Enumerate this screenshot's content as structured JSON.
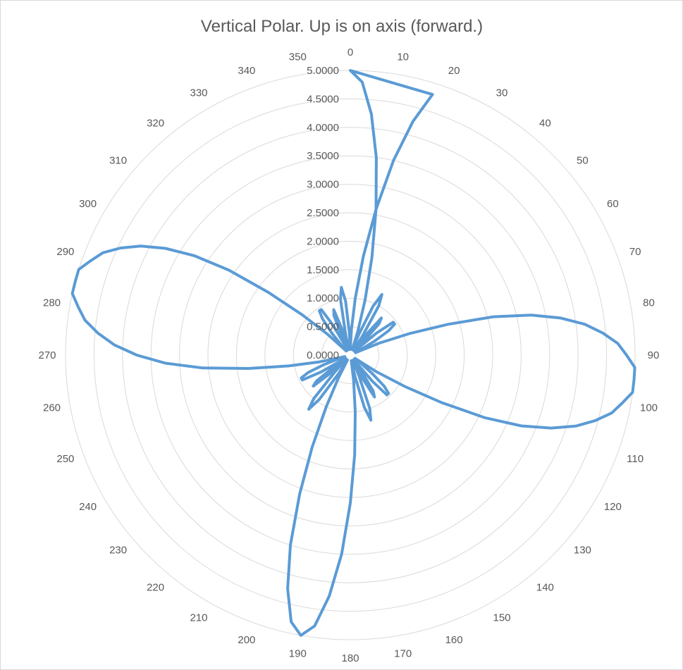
{
  "chart_data": {
    "type": "line",
    "subtype": "polar",
    "title": "Vertical Polar.  Up is on axis (forward.)",
    "radial_axis": {
      "min": 0,
      "max": 5,
      "step": 0.5,
      "tick_labels": [
        "0.0000",
        "0.5000",
        "1.0000",
        "1.5000",
        "2.0000",
        "2.5000",
        "3.0000",
        "3.5000",
        "4.0000",
        "4.5000",
        "5.0000"
      ]
    },
    "angle_labels": [
      "0",
      "10",
      "20",
      "30",
      "40",
      "50",
      "60",
      "70",
      "80",
      "90",
      "100",
      "110",
      "120",
      "130",
      "140",
      "150",
      "160",
      "170",
      "180",
      "190",
      "200",
      "210",
      "220",
      "230",
      "240",
      "250",
      "260",
      "270",
      "280",
      "290",
      "300",
      "310",
      "320",
      "330",
      "340",
      "350"
    ],
    "grid": true,
    "legend": "none",
    "colors": {
      "series": "#5b9bd5",
      "grid": "#d9d9d9",
      "text": "#595959"
    },
    "series": [
      {
        "angle_step_deg": 2.5,
        "values": [
          5.0,
          4.8,
          4.25,
          3.5,
          2.6,
          1.75,
          1.0,
          0.45,
          0.1,
          0.4,
          0.95,
          1.2,
          1.0,
          0.4,
          0.1,
          0.45,
          0.85,
          0.75,
          0.3,
          0.1,
          0.6,
          0.95,
          0.95,
          0.8,
          0.5,
          0.2,
          0.1,
          0.55,
          1.1,
          1.8,
          2.6,
          3.25,
          3.75,
          4.15,
          4.45,
          4.7,
          4.85,
          5.0,
          5.0,
          5.0,
          4.85,
          4.7,
          4.45,
          4.15,
          3.75,
          3.25,
          2.6,
          1.8,
          1.1,
          0.55,
          0.1,
          0.2,
          0.5,
          0.8,
          0.95,
          0.95,
          0.6,
          0.1,
          0.3,
          0.75,
          0.85,
          0.45,
          0.1,
          0.4,
          1.0,
          1.2,
          0.95,
          0.4,
          0.1,
          0.45,
          1.0,
          1.75,
          2.6,
          3.5,
          4.25,
          4.8,
          5.0,
          4.8,
          4.25,
          3.5,
          2.6,
          1.75,
          1.0,
          0.45,
          0.1,
          0.4,
          0.95,
          1.2,
          1.0,
          0.4,
          0.1,
          0.45,
          0.85,
          0.75,
          0.3,
          0.1,
          0.6,
          0.95,
          0.95,
          0.8,
          0.5,
          0.2,
          0.1,
          0.55,
          1.1,
          1.8,
          2.6,
          3.25,
          3.75,
          4.15,
          4.45,
          4.7,
          4.85,
          5.0,
          5.0,
          5.0,
          4.85,
          4.7,
          4.45,
          4.15,
          3.75,
          3.25,
          2.6,
          1.8,
          1.1,
          0.55,
          0.1,
          0.2,
          0.5,
          0.8,
          0.95,
          0.95,
          0.6,
          0.1,
          0.3,
          0.75,
          0.85,
          0.45,
          0.1,
          0.4,
          1.0,
          1.2,
          0.95,
          0.4,
          0.1,
          0.45,
          1.0,
          1.75,
          2.6,
          3.5,
          4.25,
          4.8
        ]
      }
    ]
  }
}
